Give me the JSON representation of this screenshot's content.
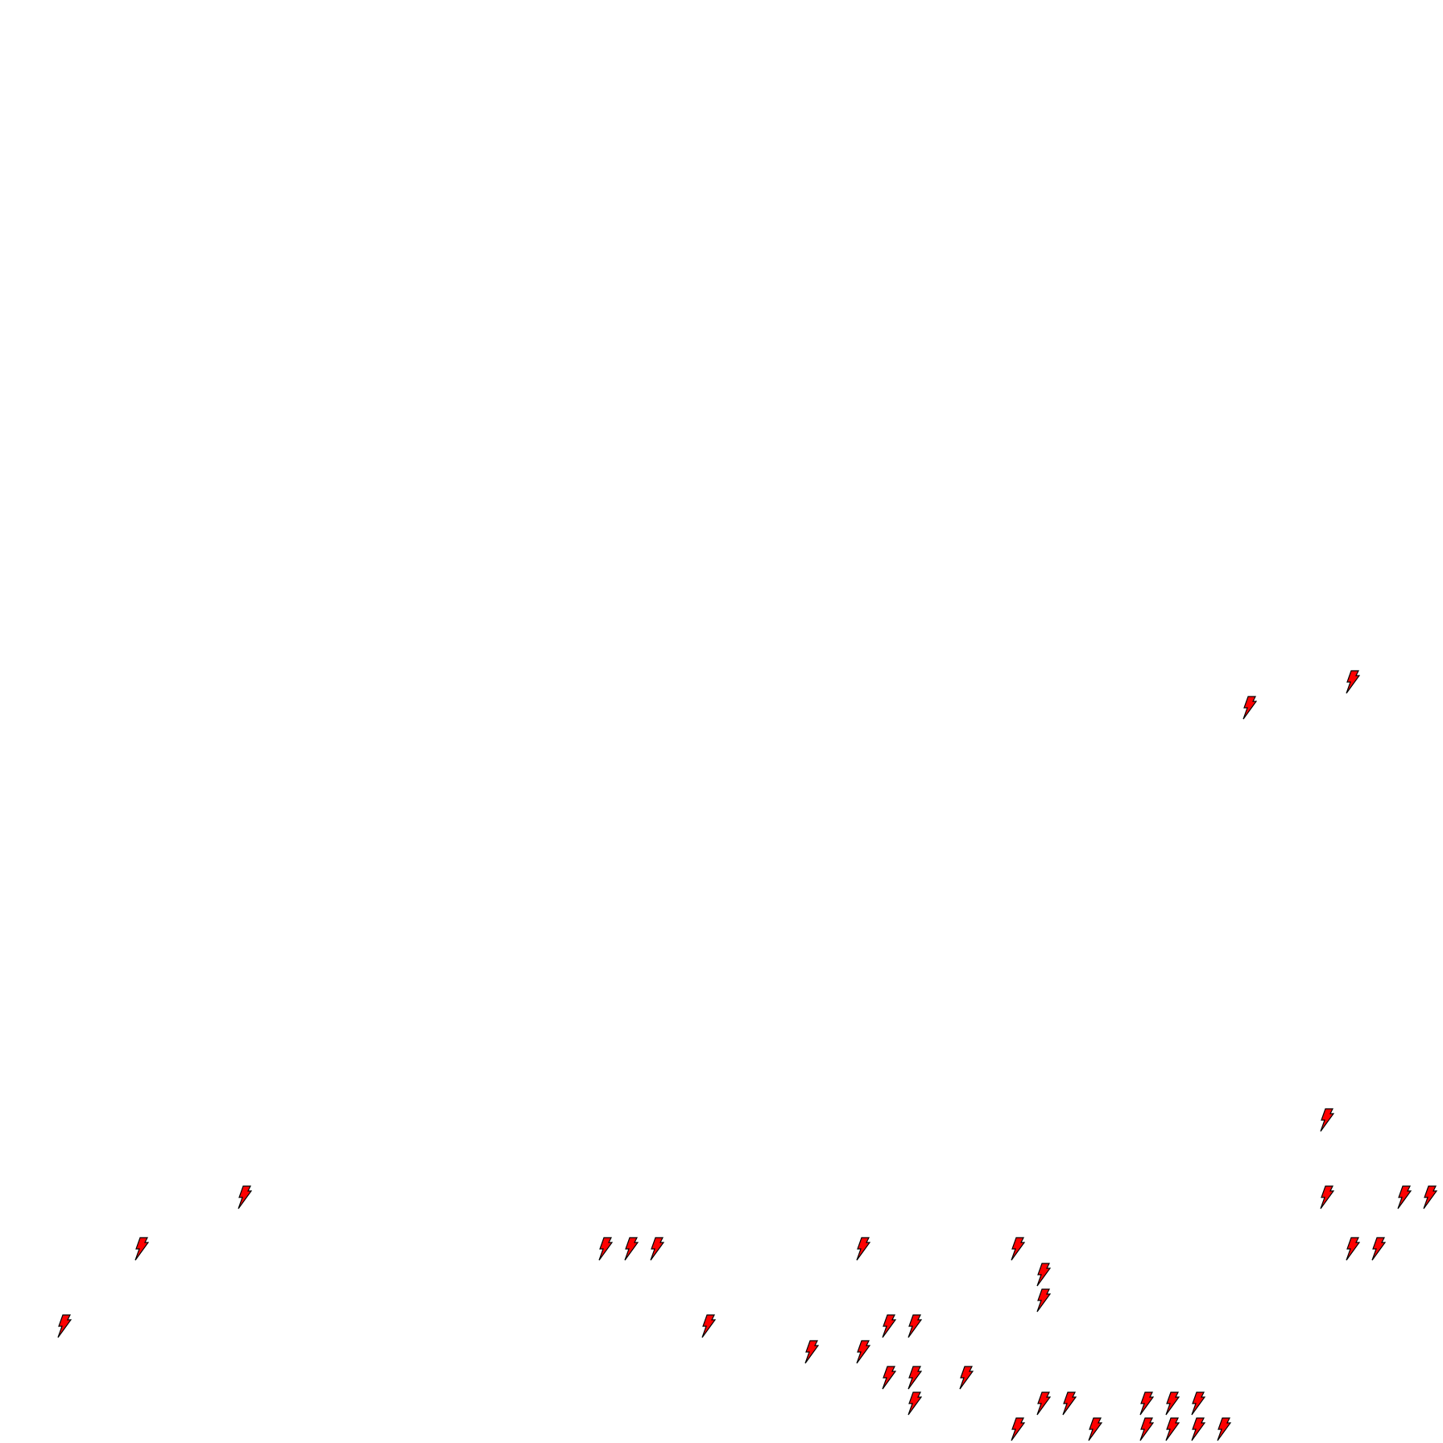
{
  "icons": {
    "name": "lightning-bolt-icon",
    "fill_color": "#ff0000",
    "stroke_color": "#000000"
  }
}
